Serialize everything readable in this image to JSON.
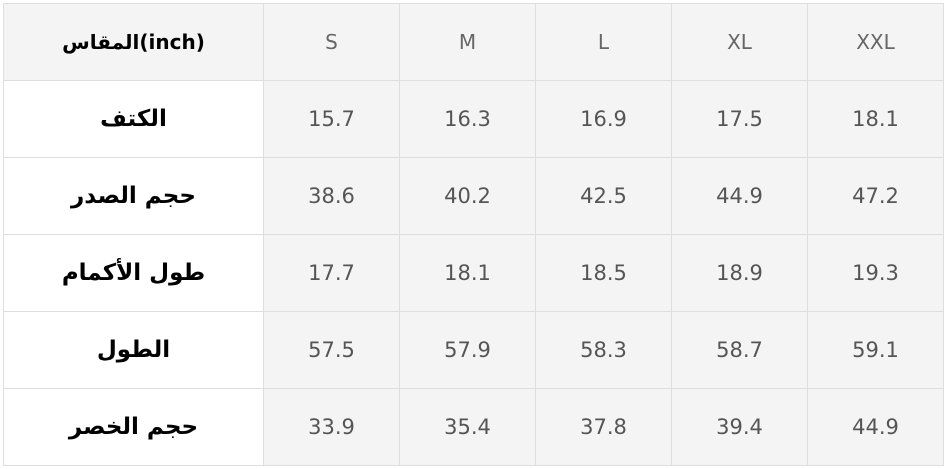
{
  "table": {
    "header": [
      "المقاس(inch)",
      "S",
      "M",
      "L",
      "XL",
      "XXL"
    ],
    "rows": [
      [
        "الكتف",
        15.7,
        16.3,
        16.9,
        17.5,
        18.1
      ],
      [
        "حجم الصدر",
        38.6,
        40.2,
        42.5,
        44.9,
        47.2
      ],
      [
        "طول الأكمام",
        17.7,
        18.1,
        18.5,
        18.9,
        19.3
      ],
      [
        "الطول",
        57.5,
        57.9,
        58.3,
        58.7,
        59.1
      ],
      [
        "حجم الخصر",
        33.9,
        35.4,
        37.8,
        39.4,
        44.9
      ]
    ]
  }
}
